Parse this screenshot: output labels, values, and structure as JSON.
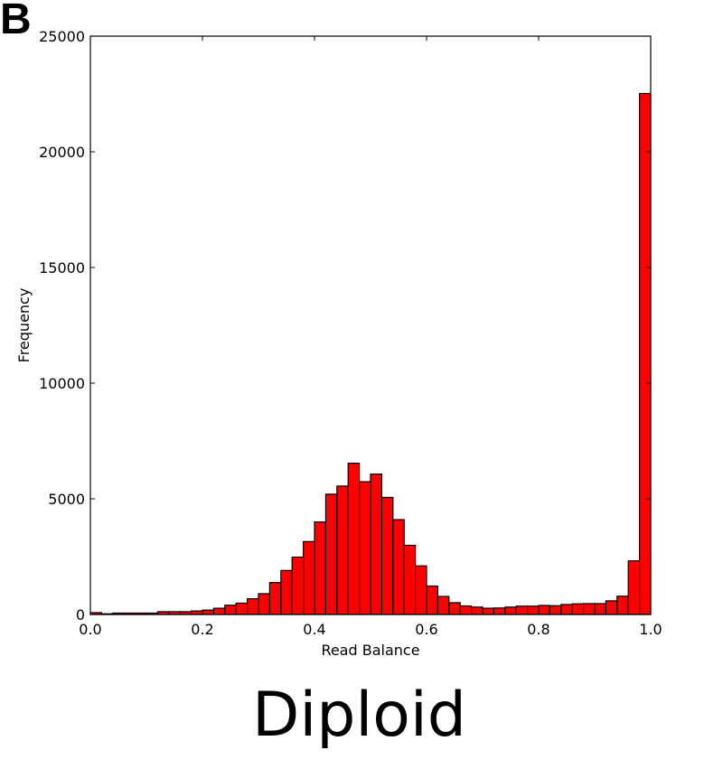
{
  "panel_label": "B",
  "caption": "Diploid",
  "colors": {
    "bar_fill": "#ff0000",
    "bar_edge": "#000000",
    "axis": "#000000"
  },
  "chart_data": {
    "type": "bar",
    "subtype": "histogram",
    "xlabel": "Read Balance",
    "ylabel": "Frequency",
    "xlim": [
      0.0,
      1.0
    ],
    "ylim": [
      0,
      25000
    ],
    "x_ticks": [
      0.0,
      0.2,
      0.4,
      0.6,
      0.8,
      1.0
    ],
    "x_tick_labels": [
      "0.0",
      "0.2",
      "0.4",
      "0.6",
      "0.8",
      "1.0"
    ],
    "y_ticks": [
      0,
      5000,
      10000,
      15000,
      20000,
      25000
    ],
    "y_tick_labels": [
      "0",
      "5000",
      "10000",
      "15000",
      "20000",
      "25000"
    ],
    "grid": false,
    "bin_width": 0.02,
    "bin_starts": [
      0.0,
      0.02,
      0.04,
      0.06,
      0.08,
      0.1,
      0.12,
      0.14,
      0.16,
      0.18,
      0.2,
      0.22,
      0.24,
      0.26,
      0.28,
      0.3,
      0.32,
      0.34,
      0.36,
      0.38,
      0.4,
      0.42,
      0.44,
      0.46,
      0.48,
      0.5,
      0.52,
      0.54,
      0.56,
      0.58,
      0.6,
      0.62,
      0.64,
      0.66,
      0.68,
      0.7,
      0.72,
      0.74,
      0.76,
      0.78,
      0.8,
      0.82,
      0.84,
      0.86,
      0.88,
      0.9,
      0.92,
      0.94,
      0.96,
      0.98
    ],
    "values": [
      80,
      30,
      60,
      60,
      60,
      60,
      120,
      120,
      120,
      150,
      190,
      270,
      400,
      490,
      680,
      900,
      1380,
      1900,
      2480,
      3150,
      4000,
      5200,
      5550,
      6540,
      5740,
      6070,
      5060,
      4100,
      2990,
      2100,
      1230,
      780,
      510,
      370,
      320,
      270,
      280,
      320,
      360,
      360,
      390,
      380,
      430,
      460,
      470,
      470,
      590,
      790,
      2320,
      22520
    ]
  }
}
